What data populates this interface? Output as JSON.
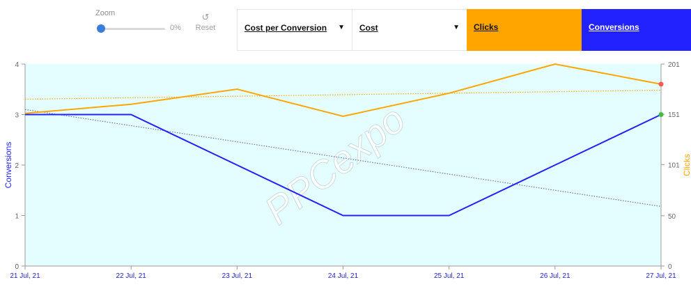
{
  "zoom": {
    "label": "Zoom",
    "value": "0%",
    "reset_label": "Reset",
    "reset_icon": "undo-icon"
  },
  "selects": [
    {
      "label": "Cost per Conversion",
      "caret": "▼"
    },
    {
      "label": "Cost",
      "caret": "▼"
    }
  ],
  "legend_buttons": {
    "clicks": "Clicks",
    "conversions": "Conversions"
  },
  "watermark": "PPCexpo",
  "colors": {
    "conversions": "#2222ff",
    "clicks": "#ffa500",
    "plot_bg": "#e4feff",
    "last_point_clicks": "#ff5555",
    "last_point_conv": "#44bb44"
  },
  "chart_data": {
    "type": "line",
    "categories": [
      "21 Jul, 21",
      "22 Jul, 21",
      "23 Jul, 21",
      "24 Jul, 21",
      "25 Jul, 21",
      "26 Jul, 21",
      "27 Jul, 21"
    ],
    "series": [
      {
        "name": "Conversions",
        "axis": "left",
        "values": [
          3,
          3,
          2,
          1,
          1,
          2,
          3
        ],
        "trendline": [
          3.1,
          1.18
        ]
      },
      {
        "name": "Clicks",
        "axis": "right",
        "values": [
          152,
          161,
          176,
          149,
          172,
          201,
          181
        ],
        "trendline": [
          166,
          175
        ]
      }
    ],
    "ylabel": "Conversions",
    "y2label": "Clicks",
    "ylim": [
      0,
      4
    ],
    "y2lim": [
      0,
      201
    ],
    "yticks": [
      "0",
      "1",
      "2",
      "3",
      "4"
    ],
    "y2ticks": [
      "0",
      "50",
      "101",
      "151",
      "201"
    ],
    "grid": false
  }
}
